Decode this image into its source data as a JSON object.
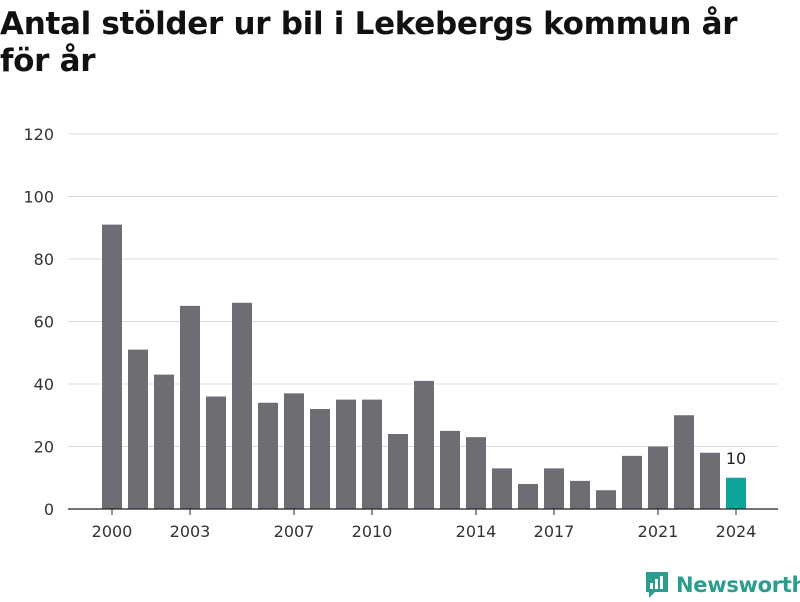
{
  "title": "Antal stölder ur bil i Lekebergs kommun år för år",
  "brand": "Newsworthy",
  "colors": {
    "bar": "#6e6d73",
    "highlight": "#0ea598",
    "grid": "#dcdcdc",
    "brand": "#2a9d8f"
  },
  "chart_data": {
    "type": "bar",
    "title": "Antal stölder ur bil i Lekebergs kommun år för år",
    "xlabel": "",
    "ylabel": "",
    "categories": [
      2000,
      2001,
      2002,
      2003,
      2004,
      2005,
      2006,
      2007,
      2008,
      2009,
      2010,
      2011,
      2012,
      2013,
      2014,
      2015,
      2016,
      2017,
      2018,
      2019,
      2020,
      2021,
      2022,
      2023,
      2024
    ],
    "values": [
      91,
      51,
      43,
      65,
      36,
      66,
      34,
      37,
      32,
      35,
      35,
      24,
      41,
      25,
      23,
      13,
      8,
      13,
      9,
      6,
      17,
      20,
      30,
      18,
      10
    ],
    "xticks": [
      2000,
      2003,
      2007,
      2010,
      2014,
      2017,
      2021,
      2024
    ],
    "yticks": [
      0,
      20,
      40,
      60,
      80,
      100,
      120
    ],
    "ylim": [
      0,
      120
    ],
    "highlight": {
      "category": 2024,
      "label": "10"
    },
    "grid": true,
    "legend": "none"
  }
}
